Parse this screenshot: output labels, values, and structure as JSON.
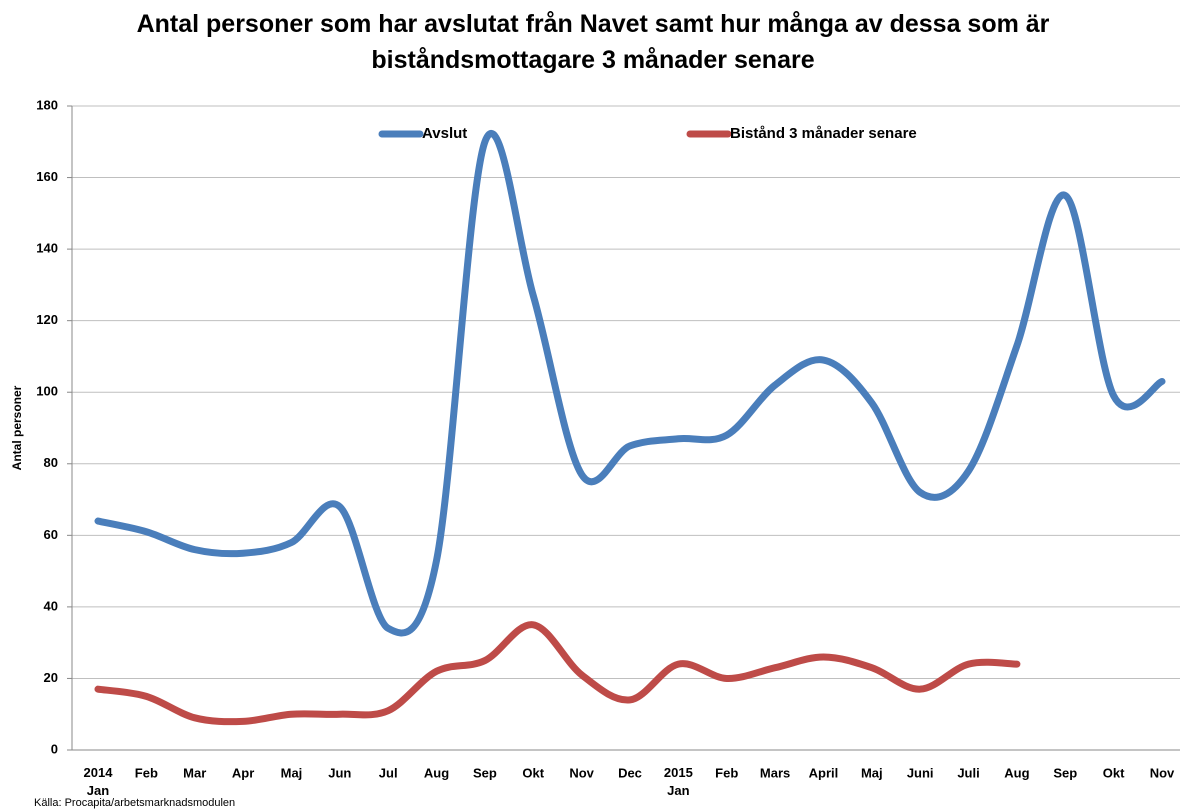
{
  "chart_data": {
    "type": "line",
    "title": "Antal personer som har avslutat från Navet samt hur många av dessa som är biståndsmottagare 3 månader senare",
    "ylabel": "Antal personer",
    "source": "Källa: Procapita/arbetsmarknadsmodulen",
    "categories": [
      "2014 Jan",
      "Feb",
      "Mar",
      "Apr",
      "Maj",
      "Jun",
      "Jul",
      "Aug",
      "Sep",
      "Okt",
      "Nov",
      "Dec",
      "2015 Jan",
      "Feb",
      "Mars",
      "April",
      "Maj",
      "Juni",
      "Juli",
      "Aug",
      "Sep",
      "Okt",
      "Nov"
    ],
    "series": [
      {
        "name": "Avslut",
        "color": "#4a7ebb",
        "values": [
          64,
          61,
          56,
          55,
          58,
          68,
          34,
          53,
          170,
          127,
          77,
          85,
          87,
          88,
          102,
          109,
          97,
          72,
          78,
          113,
          155,
          99,
          103
        ]
      },
      {
        "name": "Bistånd 3 månader senare",
        "color": "#be4b48",
        "values": [
          17,
          15,
          9,
          8,
          10,
          10,
          11,
          22,
          25,
          35,
          21,
          14,
          24,
          20,
          23,
          26,
          23,
          17,
          24,
          24,
          null,
          null,
          null
        ]
      }
    ],
    "ylim": [
      0,
      180
    ],
    "yticks": [
      0,
      20,
      40,
      60,
      80,
      100,
      120,
      140,
      160,
      180
    ],
    "grid": true,
    "smooth": true,
    "legend": "top"
  }
}
